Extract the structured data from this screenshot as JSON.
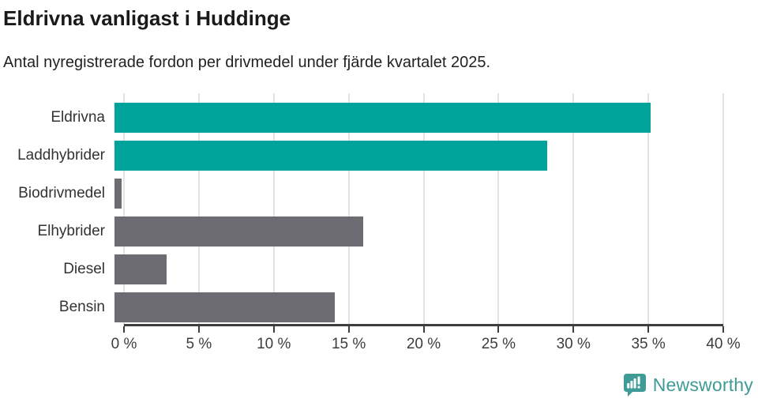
{
  "header": {
    "title": "Eldrivna vanligast i Huddinge",
    "subtitle": "Antal nyregistrerade fordon per drivmedel under fjärde kvartalet 2025."
  },
  "chart_data": {
    "type": "bar",
    "orientation": "horizontal",
    "title": "Eldrivna vanligast i Huddinge",
    "subtitle": "Antal nyregistrerade fordon per drivmedel under fjärde kvartalet 2025.",
    "categories": [
      "Eldrivna",
      "Laddhybrider",
      "Biodrivmedel",
      "Elhybrider",
      "Diesel",
      "Bensin"
    ],
    "values": [
      35.8,
      28.9,
      0.5,
      16.6,
      3.5,
      14.7
    ],
    "unit": "%",
    "bar_colors": [
      "#00a49b",
      "#00a49b",
      "#6d6c72",
      "#6d6c72",
      "#6d6c72",
      "#6d6c72"
    ],
    "xlabel": "",
    "ylabel": "",
    "xlim": [
      0,
      40
    ],
    "x_ticks": [
      0,
      5,
      10,
      15,
      20,
      25,
      30,
      35,
      40
    ],
    "x_tick_labels": [
      "0 %",
      "5 %",
      "10 %",
      "15 %",
      "20 %",
      "25 %",
      "30 %",
      "35 %",
      "40 %"
    ],
    "grid": "vertical-gridlines-on",
    "legend": "none"
  },
  "branding": {
    "logo_text": "Newsworthy",
    "icon": "bar-chart-speech-bubble-icon",
    "logo_color": "#3f9b95"
  },
  "colors": {
    "bar_teal": "#00a49b",
    "bar_gray": "#6d6c72",
    "axis": "#3e3e3e",
    "gridline": "#e3e3e3",
    "title_text": "#1a1a1a",
    "body_text": "#333333"
  }
}
